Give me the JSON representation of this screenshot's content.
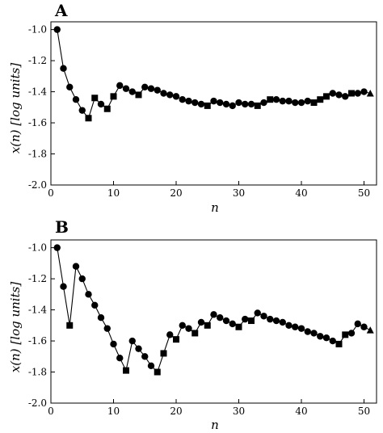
{
  "chart_data": [
    {
      "type": "line",
      "panel_label": "A",
      "xlabel": "n",
      "ylabel": "x(n) [log units]",
      "xlim": [
        0,
        52
      ],
      "ylim": [
        -2.0,
        -0.95
      ],
      "xticks": [
        0,
        10,
        20,
        30,
        40,
        50
      ],
      "yticks": [
        -1.0,
        -1.2,
        -1.4,
        -1.6,
        -1.8,
        -2.0
      ],
      "ytick_labels": [
        "-1.0",
        "-1.2",
        "-1.4",
        "-1.6",
        "-1.8",
        "-2.0"
      ],
      "grid": false,
      "legend": "none",
      "marker_legend": {
        "circle": "circle",
        "square": "square",
        "triangle": "triangle"
      },
      "series": [
        {
          "points": [
            {
              "x": 1,
              "y": -1.0,
              "m": "circle"
            },
            {
              "x": 2,
              "y": -1.25,
              "m": "circle"
            },
            {
              "x": 3,
              "y": -1.37,
              "m": "circle"
            },
            {
              "x": 4,
              "y": -1.45,
              "m": "circle"
            },
            {
              "x": 5,
              "y": -1.52,
              "m": "circle"
            },
            {
              "x": 6,
              "y": -1.57,
              "m": "square"
            },
            {
              "x": 7,
              "y": -1.44,
              "m": "square"
            },
            {
              "x": 8,
              "y": -1.48,
              "m": "circle"
            },
            {
              "x": 9,
              "y": -1.51,
              "m": "square"
            },
            {
              "x": 10,
              "y": -1.43,
              "m": "square"
            },
            {
              "x": 11,
              "y": -1.36,
              "m": "circle"
            },
            {
              "x": 12,
              "y": -1.38,
              "m": "circle"
            },
            {
              "x": 13,
              "y": -1.4,
              "m": "circle"
            },
            {
              "x": 14,
              "y": -1.42,
              "m": "square"
            },
            {
              "x": 15,
              "y": -1.37,
              "m": "circle"
            },
            {
              "x": 16,
              "y": -1.38,
              "m": "circle"
            },
            {
              "x": 17,
              "y": -1.39,
              "m": "circle"
            },
            {
              "x": 18,
              "y": -1.41,
              "m": "circle"
            },
            {
              "x": 19,
              "y": -1.42,
              "m": "circle"
            },
            {
              "x": 20,
              "y": -1.43,
              "m": "circle"
            },
            {
              "x": 21,
              "y": -1.45,
              "m": "circle"
            },
            {
              "x": 22,
              "y": -1.46,
              "m": "circle"
            },
            {
              "x": 23,
              "y": -1.47,
              "m": "circle"
            },
            {
              "x": 24,
              "y": -1.48,
              "m": "circle"
            },
            {
              "x": 25,
              "y": -1.49,
              "m": "square"
            },
            {
              "x": 26,
              "y": -1.46,
              "m": "circle"
            },
            {
              "x": 27,
              "y": -1.47,
              "m": "circle"
            },
            {
              "x": 28,
              "y": -1.48,
              "m": "circle"
            },
            {
              "x": 29,
              "y": -1.49,
              "m": "circle"
            },
            {
              "x": 30,
              "y": -1.47,
              "m": "circle"
            },
            {
              "x": 31,
              "y": -1.48,
              "m": "circle"
            },
            {
              "x": 32,
              "y": -1.48,
              "m": "circle"
            },
            {
              "x": 33,
              "y": -1.49,
              "m": "square"
            },
            {
              "x": 34,
              "y": -1.47,
              "m": "circle"
            },
            {
              "x": 35,
              "y": -1.45,
              "m": "square"
            },
            {
              "x": 36,
              "y": -1.45,
              "m": "circle"
            },
            {
              "x": 37,
              "y": -1.46,
              "m": "circle"
            },
            {
              "x": 38,
              "y": -1.46,
              "m": "circle"
            },
            {
              "x": 39,
              "y": -1.47,
              "m": "circle"
            },
            {
              "x": 40,
              "y": -1.47,
              "m": "circle"
            },
            {
              "x": 41,
              "y": -1.46,
              "m": "circle"
            },
            {
              "x": 42,
              "y": -1.47,
              "m": "square"
            },
            {
              "x": 43,
              "y": -1.45,
              "m": "square"
            },
            {
              "x": 44,
              "y": -1.43,
              "m": "square"
            },
            {
              "x": 45,
              "y": -1.41,
              "m": "circle"
            },
            {
              "x": 46,
              "y": -1.42,
              "m": "circle"
            },
            {
              "x": 47,
              "y": -1.43,
              "m": "circle"
            },
            {
              "x": 48,
              "y": -1.41,
              "m": "square"
            },
            {
              "x": 49,
              "y": -1.41,
              "m": "circle"
            },
            {
              "x": 50,
              "y": -1.4,
              "m": "circle"
            },
            {
              "x": 51,
              "y": -1.41,
              "m": "triangle"
            }
          ]
        }
      ]
    },
    {
      "type": "line",
      "panel_label": "B",
      "xlabel": "n",
      "ylabel": "x(n) [log units]",
      "xlim": [
        0,
        52
      ],
      "ylim": [
        -2.0,
        -0.95
      ],
      "xticks": [
        0,
        10,
        20,
        30,
        40,
        50
      ],
      "yticks": [
        -1.0,
        -1.2,
        -1.4,
        -1.6,
        -1.8,
        -2.0
      ],
      "ytick_labels": [
        "-1.0",
        "-1.2",
        "-1.4",
        "-1.6",
        "-1.8",
        "-2.0"
      ],
      "grid": false,
      "legend": "none",
      "marker_legend": {
        "circle": "circle",
        "square": "square",
        "triangle": "triangle"
      },
      "series": [
        {
          "points": [
            {
              "x": 1,
              "y": -1.0,
              "m": "circle"
            },
            {
              "x": 2,
              "y": -1.25,
              "m": "circle"
            },
            {
              "x": 3,
              "y": -1.5,
              "m": "square"
            },
            {
              "x": 4,
              "y": -1.12,
              "m": "circle"
            },
            {
              "x": 5,
              "y": -1.2,
              "m": "circle"
            },
            {
              "x": 6,
              "y": -1.3,
              "m": "circle"
            },
            {
              "x": 7,
              "y": -1.37,
              "m": "circle"
            },
            {
              "x": 8,
              "y": -1.45,
              "m": "circle"
            },
            {
              "x": 9,
              "y": -1.52,
              "m": "circle"
            },
            {
              "x": 10,
              "y": -1.62,
              "m": "circle"
            },
            {
              "x": 11,
              "y": -1.71,
              "m": "circle"
            },
            {
              "x": 12,
              "y": -1.79,
              "m": "square"
            },
            {
              "x": 13,
              "y": -1.6,
              "m": "circle"
            },
            {
              "x": 14,
              "y": -1.65,
              "m": "circle"
            },
            {
              "x": 15,
              "y": -1.7,
              "m": "circle"
            },
            {
              "x": 16,
              "y": -1.76,
              "m": "circle"
            },
            {
              "x": 17,
              "y": -1.8,
              "m": "square"
            },
            {
              "x": 18,
              "y": -1.68,
              "m": "square"
            },
            {
              "x": 19,
              "y": -1.56,
              "m": "circle"
            },
            {
              "x": 20,
              "y": -1.59,
              "m": "square"
            },
            {
              "x": 21,
              "y": -1.5,
              "m": "circle"
            },
            {
              "x": 22,
              "y": -1.52,
              "m": "circle"
            },
            {
              "x": 23,
              "y": -1.55,
              "m": "square"
            },
            {
              "x": 24,
              "y": -1.48,
              "m": "circle"
            },
            {
              "x": 25,
              "y": -1.5,
              "m": "square"
            },
            {
              "x": 26,
              "y": -1.43,
              "m": "circle"
            },
            {
              "x": 27,
              "y": -1.45,
              "m": "circle"
            },
            {
              "x": 28,
              "y": -1.47,
              "m": "circle"
            },
            {
              "x": 29,
              "y": -1.49,
              "m": "circle"
            },
            {
              "x": 30,
              "y": -1.51,
              "m": "square"
            },
            {
              "x": 31,
              "y": -1.46,
              "m": "circle"
            },
            {
              "x": 32,
              "y": -1.47,
              "m": "square"
            },
            {
              "x": 33,
              "y": -1.42,
              "m": "circle"
            },
            {
              "x": 34,
              "y": -1.44,
              "m": "circle"
            },
            {
              "x": 35,
              "y": -1.46,
              "m": "circle"
            },
            {
              "x": 36,
              "y": -1.47,
              "m": "circle"
            },
            {
              "x": 37,
              "y": -1.48,
              "m": "circle"
            },
            {
              "x": 38,
              "y": -1.5,
              "m": "circle"
            },
            {
              "x": 39,
              "y": -1.51,
              "m": "circle"
            },
            {
              "x": 40,
              "y": -1.52,
              "m": "circle"
            },
            {
              "x": 41,
              "y": -1.54,
              "m": "circle"
            },
            {
              "x": 42,
              "y": -1.55,
              "m": "circle"
            },
            {
              "x": 43,
              "y": -1.57,
              "m": "circle"
            },
            {
              "x": 44,
              "y": -1.58,
              "m": "circle"
            },
            {
              "x": 45,
              "y": -1.6,
              "m": "circle"
            },
            {
              "x": 46,
              "y": -1.62,
              "m": "square"
            },
            {
              "x": 47,
              "y": -1.56,
              "m": "square"
            },
            {
              "x": 48,
              "y": -1.55,
              "m": "circle"
            },
            {
              "x": 49,
              "y": -1.49,
              "m": "circle"
            },
            {
              "x": 50,
              "y": -1.51,
              "m": "circle"
            },
            {
              "x": 51,
              "y": -1.53,
              "m": "triangle"
            }
          ]
        }
      ]
    }
  ]
}
